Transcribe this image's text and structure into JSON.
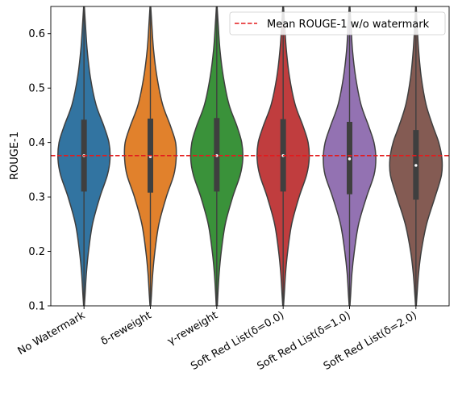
{
  "chart_data": {
    "type": "violin",
    "ylabel": "ROUGE-1",
    "xlabel": "",
    "ylim": [
      0.1,
      0.65
    ],
    "yticks": [
      "0.1",
      "0.2",
      "0.3",
      "0.4",
      "0.5",
      "0.6"
    ],
    "grid": false,
    "legend_position": "top-right",
    "reference_line": {
      "label": "Mean ROUGE-1 w/o watermark",
      "value": 0.376,
      "color": "#e41a1c",
      "style": "dashed"
    },
    "categories": [
      "No Watermark",
      "δ-reweight",
      "γ-reweight",
      "Soft Red List(δ=0.0)",
      "Soft Red List(δ=1.0)",
      "Soft Red List(δ=2.0)"
    ],
    "colors": [
      "#3274a1",
      "#e1812c",
      "#3a923a",
      "#c03d3e",
      "#9372b2",
      "#845b53"
    ],
    "distributions": [
      {
        "median": 0.376,
        "q1": 0.31,
        "q3": 0.442,
        "min": 0.09,
        "max": 0.66,
        "density": [
          [
            0.09,
            0.0
          ],
          [
            0.12,
            0.04
          ],
          [
            0.16,
            0.09
          ],
          [
            0.2,
            0.17
          ],
          [
            0.25,
            0.32
          ],
          [
            0.3,
            0.6
          ],
          [
            0.34,
            0.88
          ],
          [
            0.37,
            0.98
          ],
          [
            0.4,
            0.94
          ],
          [
            0.43,
            0.75
          ],
          [
            0.47,
            0.45
          ],
          [
            0.52,
            0.24
          ],
          [
            0.57,
            0.12
          ],
          [
            0.62,
            0.05
          ],
          [
            0.66,
            0.0
          ]
        ]
      },
      {
        "median": 0.374,
        "q1": 0.308,
        "q3": 0.444,
        "min": 0.09,
        "max": 0.66,
        "density": [
          [
            0.09,
            0.0
          ],
          [
            0.12,
            0.04
          ],
          [
            0.16,
            0.09
          ],
          [
            0.2,
            0.17
          ],
          [
            0.25,
            0.32
          ],
          [
            0.3,
            0.6
          ],
          [
            0.34,
            0.88
          ],
          [
            0.37,
            0.97
          ],
          [
            0.4,
            0.95
          ],
          [
            0.43,
            0.76
          ],
          [
            0.47,
            0.46
          ],
          [
            0.52,
            0.25
          ],
          [
            0.57,
            0.12
          ],
          [
            0.62,
            0.05
          ],
          [
            0.66,
            0.0
          ]
        ]
      },
      {
        "median": 0.376,
        "q1": 0.31,
        "q3": 0.445,
        "min": 0.08,
        "max": 0.66,
        "density": [
          [
            0.08,
            0.0
          ],
          [
            0.12,
            0.04
          ],
          [
            0.16,
            0.09
          ],
          [
            0.2,
            0.17
          ],
          [
            0.25,
            0.32
          ],
          [
            0.3,
            0.6
          ],
          [
            0.34,
            0.88
          ],
          [
            0.37,
            0.98
          ],
          [
            0.4,
            0.94
          ],
          [
            0.43,
            0.76
          ],
          [
            0.47,
            0.46
          ],
          [
            0.52,
            0.25
          ],
          [
            0.57,
            0.12
          ],
          [
            0.62,
            0.05
          ],
          [
            0.66,
            0.0
          ]
        ]
      },
      {
        "median": 0.376,
        "q1": 0.31,
        "q3": 0.443,
        "min": 0.09,
        "max": 0.66,
        "density": [
          [
            0.09,
            0.0
          ],
          [
            0.12,
            0.04
          ],
          [
            0.16,
            0.09
          ],
          [
            0.2,
            0.17
          ],
          [
            0.25,
            0.32
          ],
          [
            0.3,
            0.6
          ],
          [
            0.34,
            0.88
          ],
          [
            0.37,
            0.98
          ],
          [
            0.4,
            0.94
          ],
          [
            0.43,
            0.75
          ],
          [
            0.47,
            0.45
          ],
          [
            0.52,
            0.24
          ],
          [
            0.57,
            0.12
          ],
          [
            0.62,
            0.05
          ],
          [
            0.66,
            0.0
          ]
        ]
      },
      {
        "median": 0.37,
        "q1": 0.305,
        "q3": 0.438,
        "min": 0.09,
        "max": 0.66,
        "density": [
          [
            0.09,
            0.0
          ],
          [
            0.12,
            0.04
          ],
          [
            0.16,
            0.09
          ],
          [
            0.2,
            0.18
          ],
          [
            0.25,
            0.34
          ],
          [
            0.3,
            0.64
          ],
          [
            0.34,
            0.92
          ],
          [
            0.37,
            0.99
          ],
          [
            0.4,
            0.92
          ],
          [
            0.43,
            0.72
          ],
          [
            0.47,
            0.43
          ],
          [
            0.52,
            0.23
          ],
          [
            0.57,
            0.11
          ],
          [
            0.62,
            0.05
          ],
          [
            0.66,
            0.0
          ]
        ]
      },
      {
        "median": 0.358,
        "q1": 0.295,
        "q3": 0.423,
        "min": 0.09,
        "max": 0.66,
        "density": [
          [
            0.09,
            0.0
          ],
          [
            0.12,
            0.04
          ],
          [
            0.16,
            0.1
          ],
          [
            0.2,
            0.2
          ],
          [
            0.25,
            0.4
          ],
          [
            0.3,
            0.72
          ],
          [
            0.34,
            0.96
          ],
          [
            0.37,
            0.98
          ],
          [
            0.4,
            0.86
          ],
          [
            0.43,
            0.64
          ],
          [
            0.47,
            0.38
          ],
          [
            0.52,
            0.2
          ],
          [
            0.57,
            0.1
          ],
          [
            0.62,
            0.04
          ],
          [
            0.66,
            0.0
          ]
        ]
      }
    ]
  }
}
